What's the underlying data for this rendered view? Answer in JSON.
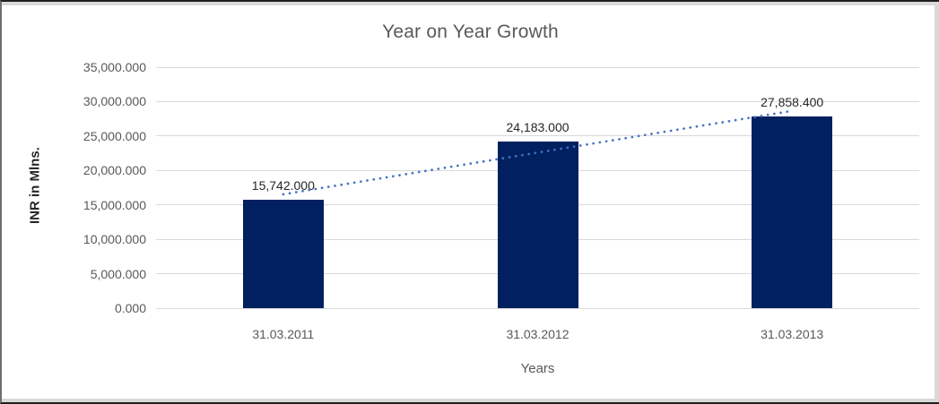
{
  "chart_data": {
    "type": "bar",
    "title": "Year on Year Growth",
    "xlabel": "Years",
    "ylabel": "INR in Mlns.",
    "categories": [
      "31.03.2011",
      "31.03.2012",
      "31.03.2013"
    ],
    "values": [
      15742.0,
      24183.0,
      27858.4
    ],
    "value_labels": [
      "15,742.000",
      "24,183.000",
      "27,858.400"
    ],
    "ylim": [
      0,
      35000
    ],
    "ytick_step": 5000,
    "ytick_labels": [
      "0.000",
      "5,000.000",
      "10,000.000",
      "15,000.000",
      "20,000.000",
      "25,000.000",
      "30,000.000",
      "35,000.000"
    ],
    "grid": true,
    "legend": "none",
    "trendline": {
      "type": "linear",
      "style": "dotted"
    },
    "colors": {
      "bar": "#002060",
      "trendline": "#4472C4",
      "gridline": "#D9D9D9",
      "title_text": "#595959",
      "tick_text": "#595959",
      "axis_title_text": "#3f3f3f",
      "data_label_text": "#262626",
      "frame_border": "#1F1F1F",
      "frame_inner": "#D9D9D9"
    }
  }
}
